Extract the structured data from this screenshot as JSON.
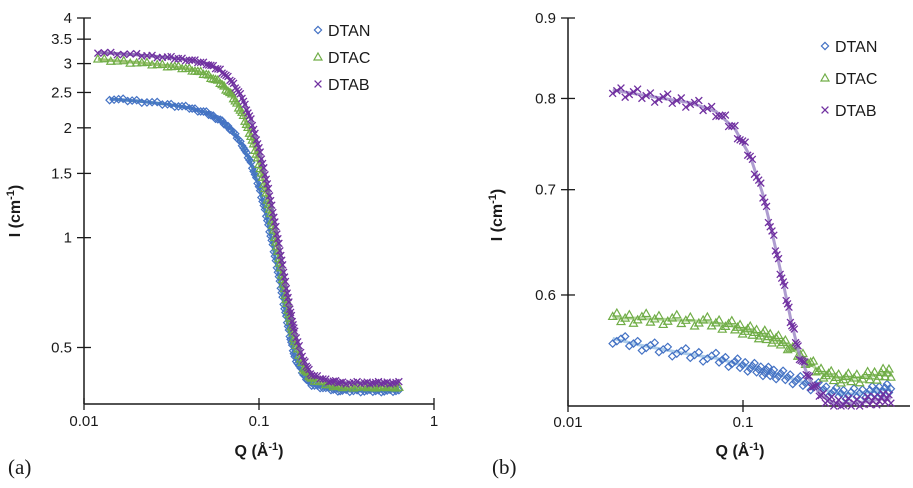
{
  "chart_data": [
    {
      "type": "scatter",
      "panel_label": "(a)",
      "xlabel": {
        "main": "Q (Å",
        "sup": "-1",
        "close": ")"
      },
      "ylabel": {
        "main": "I (cm",
        "sup": "-1",
        "close": ")"
      },
      "xscale": "log",
      "yscale": "log",
      "xlim": [
        0.01,
        1
      ],
      "ylim": [
        0.35,
        4
      ],
      "x_ticks": [
        "0.01",
        "0.1",
        "1"
      ],
      "y_ticks": [
        "0.5",
        "1",
        "1.5",
        "2",
        "2.5",
        "3",
        "3.5",
        "4"
      ],
      "y_tick_values": [
        0.5,
        1,
        1.5,
        2,
        2.5,
        3,
        3.5,
        4
      ],
      "legend_position": "top-right",
      "fit_lines": true,
      "series": [
        {
          "name": "DTAN",
          "marker": "diamond",
          "color": "#4472C4",
          "fit_color": "#2E6DB4",
          "x": [
            0.014,
            0.02,
            0.03,
            0.04,
            0.05,
            0.06,
            0.07,
            0.08,
            0.09,
            0.1,
            0.11,
            0.12,
            0.13,
            0.14,
            0.15,
            0.16,
            0.18,
            0.2,
            0.25,
            0.3,
            0.4,
            0.5,
            0.63
          ],
          "y": [
            2.4,
            2.37,
            2.32,
            2.27,
            2.2,
            2.1,
            1.97,
            1.8,
            1.6,
            1.38,
            1.15,
            0.95,
            0.78,
            0.64,
            0.54,
            0.47,
            0.42,
            0.395,
            0.385,
            0.38,
            0.38,
            0.38,
            0.38
          ]
        },
        {
          "name": "DTAC",
          "marker": "triangle",
          "color": "#70AD47",
          "fit_color": "#8DB85A",
          "x": [
            0.012,
            0.02,
            0.03,
            0.04,
            0.05,
            0.06,
            0.07,
            0.08,
            0.09,
            0.1,
            0.11,
            0.12,
            0.13,
            0.14,
            0.15,
            0.16,
            0.18,
            0.2,
            0.25,
            0.3,
            0.4,
            0.5,
            0.63
          ],
          "y": [
            3.08,
            3.02,
            2.96,
            2.9,
            2.8,
            2.66,
            2.46,
            2.2,
            1.9,
            1.6,
            1.32,
            1.08,
            0.88,
            0.72,
            0.6,
            0.52,
            0.44,
            0.41,
            0.395,
            0.39,
            0.39,
            0.39,
            0.39
          ]
        },
        {
          "name": "DTAB",
          "marker": "cross",
          "color": "#7030A0",
          "fit_color": "#7A5AA8",
          "x": [
            0.012,
            0.02,
            0.03,
            0.04,
            0.05,
            0.06,
            0.07,
            0.08,
            0.09,
            0.1,
            0.11,
            0.12,
            0.13,
            0.14,
            0.15,
            0.16,
            0.18,
            0.2,
            0.25,
            0.3,
            0.4,
            0.5,
            0.63
          ],
          "y": [
            3.22,
            3.17,
            3.12,
            3.07,
            3.0,
            2.88,
            2.68,
            2.42,
            2.1,
            1.76,
            1.45,
            1.18,
            0.96,
            0.78,
            0.64,
            0.55,
            0.46,
            0.42,
            0.405,
            0.4,
            0.4,
            0.4,
            0.4
          ]
        }
      ]
    },
    {
      "type": "scatter",
      "panel_label": "(b)",
      "xlabel": {
        "main": "Q (Å",
        "sup": "-1",
        "close": ")"
      },
      "ylabel": {
        "main": "I (cm",
        "sup": "-1",
        "close": ")"
      },
      "xscale": "log",
      "yscale": "log",
      "xlim": [
        0.01,
        0.9
      ],
      "ylim": [
        0.51,
        0.9
      ],
      "x_ticks": [
        "0.01",
        "0.1"
      ],
      "y_ticks": [
        "0.6",
        "0.7",
        "0.8",
        "0.9"
      ],
      "y_tick_values": [
        0.6,
        0.7,
        0.8,
        0.9
      ],
      "legend_position": "top-right",
      "fit_lines": true,
      "series": [
        {
          "name": "DTAN",
          "marker": "diamond",
          "color": "#4472C4",
          "fit_color": "#9DC3E6",
          "x": [
            0.018,
            0.025,
            0.035,
            0.05,
            0.07,
            0.09,
            0.11,
            0.13,
            0.15,
            0.18,
            0.22,
            0.27,
            0.33,
            0.4,
            0.5,
            0.6,
            0.7
          ],
          "y": [
            0.563,
            0.558,
            0.554,
            0.55,
            0.547,
            0.543,
            0.54,
            0.537,
            0.535,
            0.532,
            0.528,
            0.524,
            0.52,
            0.519,
            0.52,
            0.522,
            0.523
          ]
        },
        {
          "name": "DTAC",
          "marker": "triangle",
          "color": "#70AD47",
          "fit_color": "#A9D18E",
          "x": [
            0.018,
            0.025,
            0.035,
            0.05,
            0.07,
            0.09,
            0.11,
            0.13,
            0.15,
            0.18,
            0.22,
            0.27,
            0.33,
            0.4,
            0.5,
            0.6,
            0.7
          ],
          "y": [
            0.58,
            0.58,
            0.579,
            0.578,
            0.576,
            0.573,
            0.569,
            0.566,
            0.563,
            0.558,
            0.548,
            0.537,
            0.532,
            0.531,
            0.532,
            0.534,
            0.536
          ]
        },
        {
          "name": "DTAB",
          "marker": "cross",
          "color": "#7030A0",
          "fit_color": "#A08BC8",
          "x": [
            0.018,
            0.025,
            0.035,
            0.05,
            0.07,
            0.09,
            0.11,
            0.13,
            0.15,
            0.17,
            0.19,
            0.21,
            0.24,
            0.28,
            0.33,
            0.4,
            0.5,
            0.6,
            0.7
          ],
          "y": [
            0.81,
            0.805,
            0.8,
            0.795,
            0.785,
            0.765,
            0.735,
            0.695,
            0.65,
            0.61,
            0.575,
            0.55,
            0.53,
            0.518,
            0.512,
            0.512,
            0.513,
            0.515,
            0.516
          ]
        }
      ]
    }
  ]
}
